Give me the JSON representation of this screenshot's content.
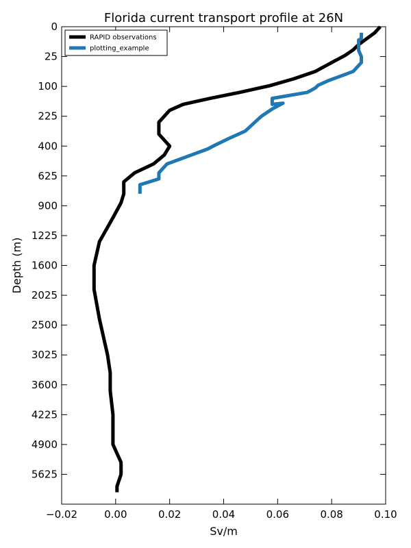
{
  "chart_data": {
    "type": "line",
    "title": "Florida current transport profile at 26N",
    "xlabel": "Sv/m",
    "ylabel": "Depth (m)",
    "xlim": [
      -0.02,
      0.1
    ],
    "y_scale": "sqrt",
    "y_inverted": true,
    "ylim": [
      0,
      6400
    ],
    "x_ticks": [
      -0.02,
      0.0,
      0.02,
      0.04,
      0.06,
      0.08,
      0.1
    ],
    "x_tick_labels": [
      "−0.02",
      "0.00",
      "0.02",
      "0.04",
      "0.06",
      "0.08",
      "0.10"
    ],
    "y_ticks": [
      0,
      25,
      100,
      225,
      400,
      625,
      900,
      1225,
      1600,
      2025,
      2500,
      3025,
      3600,
      4225,
      4900,
      5625
    ],
    "y_tick_labels": [
      "0",
      "25",
      "100",
      "225",
      "400",
      "625",
      "900",
      "1225",
      "1600",
      "2025",
      "2500",
      "3025",
      "3600",
      "4225",
      "4900",
      "5625"
    ],
    "grid": false,
    "legend_position": "top-left",
    "series": [
      {
        "name": "RAPID observations",
        "color": "#000000",
        "x": [
          0.098,
          0.096,
          0.093,
          0.09,
          0.088,
          0.085,
          0.08,
          0.074,
          0.066,
          0.057,
          0.046,
          0.035,
          0.025,
          0.02,
          0.018,
          0.016,
          0.016,
          0.018,
          0.02,
          0.018,
          0.014,
          0.007,
          0.003,
          0.003,
          0.002,
          -0.001,
          -0.006,
          -0.008,
          -0.008,
          -0.006,
          -0.003,
          -0.002,
          -0.002,
          -0.001,
          -0.001,
          0.002,
          0.002,
          0.0005,
          0.0005
        ],
        "depth": [
          0,
          1,
          4,
          9,
          15,
          23,
          36,
          56,
          76,
          98,
          121,
          144,
          169,
          196,
          225,
          256,
          324,
          361,
          400,
          462,
          529,
          600,
          676,
          784,
          870,
          1024,
          1296,
          1600,
          1936,
          2401,
          3025,
          3364,
          3721,
          4225,
          4900,
          5329,
          5625,
          5929,
          6084
        ]
      },
      {
        "name": "plotting_example",
        "color": "#1f77b4",
        "x": [
          0.091,
          0.091,
          0.09,
          0.09,
          0.091,
          0.091,
          0.088,
          0.085,
          0.079,
          0.075,
          0.074,
          0.071,
          0.058,
          0.058,
          0.062,
          0.058,
          0.054,
          0.052,
          0.048,
          0.042,
          0.037,
          0.034,
          0.028,
          0.019,
          0.018,
          0.017,
          0.016,
          0.016,
          0.009,
          0.009
        ],
        "depth": [
          1,
          4,
          5,
          16,
          25,
          36,
          56,
          64,
          81,
          96,
          105,
          121,
          144,
          169,
          164,
          190,
          225,
          250,
          306,
          350,
          392,
          420,
          462,
          529,
          552,
          576,
          600,
          650,
          702,
          784
        ]
      }
    ]
  }
}
